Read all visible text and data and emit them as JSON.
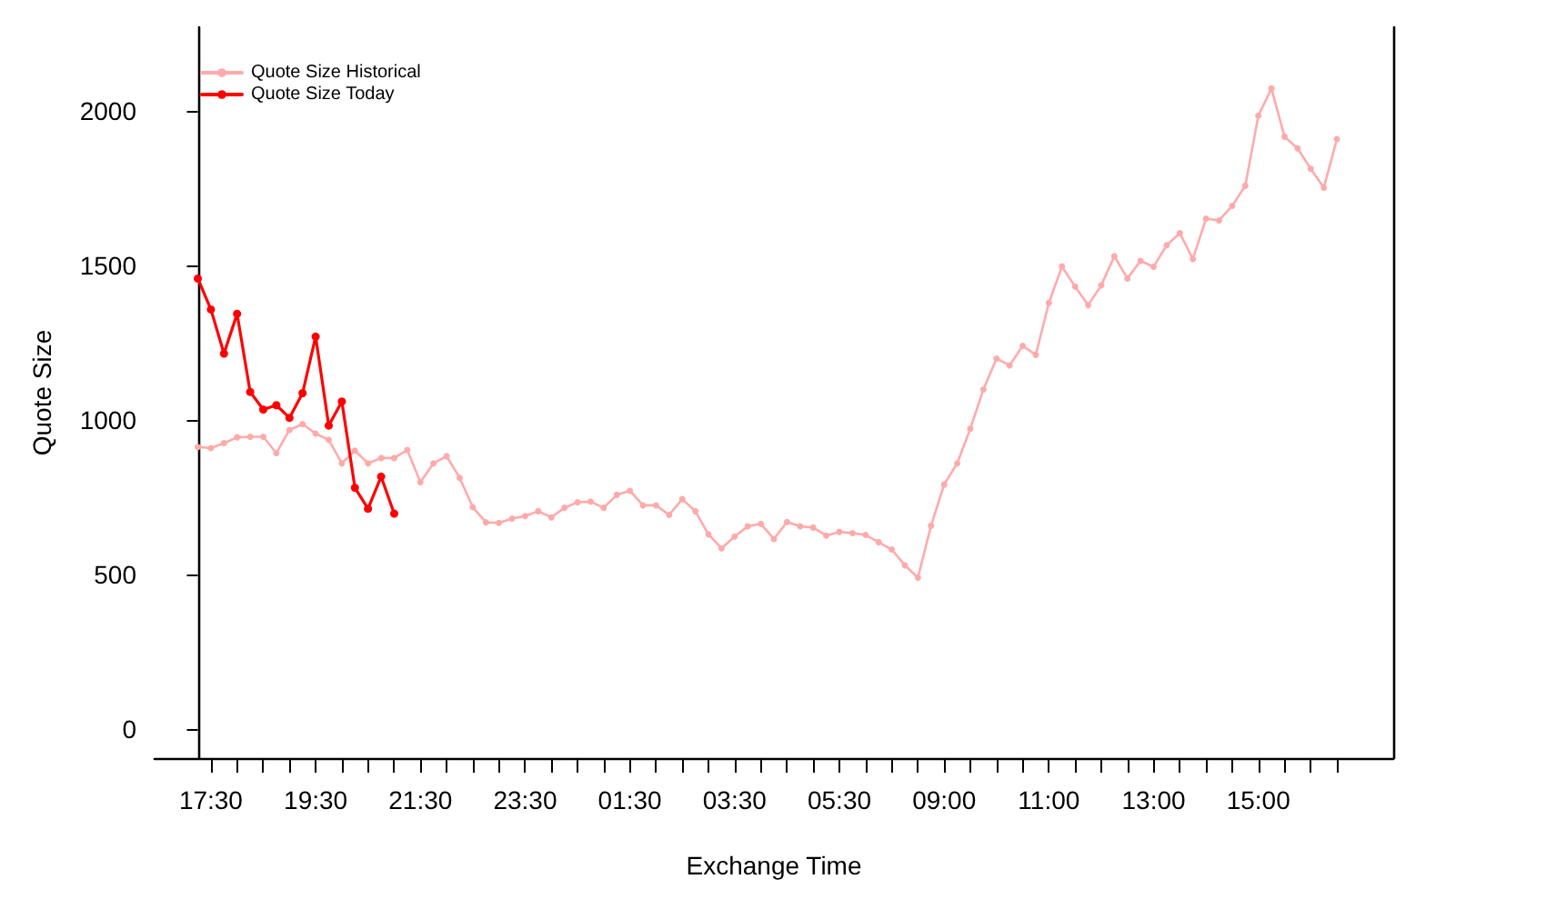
{
  "chart_data": {
    "type": "line",
    "xlabel": "Exchange Time",
    "ylabel": "Quote Size",
    "categories": [
      null,
      "17:30",
      null,
      null,
      null,
      null,
      null,
      null,
      null,
      "19:30",
      null,
      null,
      null,
      null,
      null,
      null,
      null,
      "21:30",
      null,
      null,
      null,
      null,
      null,
      null,
      null,
      "23:30",
      null,
      null,
      null,
      null,
      null,
      null,
      null,
      "01:30",
      null,
      null,
      null,
      null,
      null,
      null,
      null,
      "03:30",
      null,
      null,
      null,
      null,
      null,
      null,
      null,
      "05:30",
      null,
      null,
      null,
      null,
      null,
      null,
      null,
      "09:00",
      null,
      null,
      null,
      null,
      null,
      null,
      null,
      "11:00",
      null,
      null,
      null,
      null,
      null,
      null,
      null,
      "13:00",
      null,
      null,
      null,
      null,
      null,
      null,
      null,
      "15:00",
      null,
      null,
      null,
      null,
      null,
      null
    ],
    "series": [
      {
        "name": "Quote Size Historical",
        "color": "#ffaaaa",
        "values": [
          912,
          908,
          924,
          943,
          945,
          945,
          892,
          967,
          986,
          955,
          935,
          859,
          900,
          859,
          876,
          876,
          902,
          798,
          859,
          882,
          812,
          717,
          668,
          666,
          680,
          688,
          704,
          684,
          715,
          733,
          735,
          715,
          757,
          770,
          723,
          723,
          692,
          743,
          704,
          629,
          584,
          622,
          655,
          663,
          614,
          669,
          655,
          651,
          625,
          637,
          633,
          627,
          604,
          580,
          529,
          489,
          657,
          790,
          859,
          971,
          1098,
          1198,
          1176,
          1239,
          1210,
          1378,
          1496,
          1431,
          1371,
          1435,
          1529,
          1457,
          1514,
          1495,
          1565,
          1604,
          1520,
          1651,
          1645,
          1692,
          1757,
          1984,
          2072,
          1916,
          1878,
          1812,
          1751,
          1908
        ]
      },
      {
        "name": "Quote Size Today",
        "color": "#ff0000",
        "values": [
          1457,
          1357,
          1214,
          1343,
          1090,
          1033,
          1047,
          1006,
          1086,
          1269,
          981,
          1059,
          780,
          712,
          816,
          696,
          null,
          null,
          null,
          null,
          null,
          null,
          null,
          null,
          null,
          null,
          null,
          null,
          null,
          null,
          null,
          null,
          null,
          null,
          null,
          null,
          null,
          null,
          null,
          null,
          null,
          null,
          null,
          null,
          null,
          null,
          null,
          null,
          null,
          null,
          null,
          null,
          null,
          null,
          null,
          null,
          null,
          null,
          null,
          null,
          null,
          null,
          null,
          null,
          null,
          null,
          null,
          null,
          null,
          null,
          null,
          null,
          null,
          null,
          null,
          null,
          null,
          null,
          null,
          null,
          null,
          null,
          null,
          null,
          null,
          null,
          null,
          null
        ]
      }
    ],
    "ylim": [
      -95,
      2270
    ],
    "yticks": [
      0,
      500,
      1000,
      1500,
      2000
    ],
    "grid": false,
    "legend": "top left",
    "marker": "circle",
    "line_style": "solid"
  }
}
